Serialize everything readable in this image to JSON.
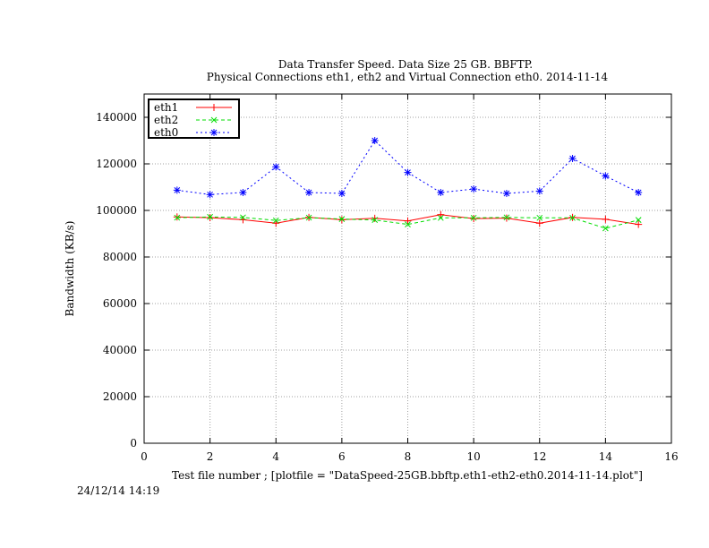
{
  "chart_data": {
    "type": "line",
    "title": "Data Transfer Speed. Data Size 25 GB. BBFTP.",
    "subtitle": "Physical Connections eth1, eth2 and Virtual Connection eth0. 2014-11-14",
    "xlabel": "Test file number ; [plotfile = \"DataSpeed-25GB.bbftp.eth1-eth2-eth0.2014-11-14.plot\"]",
    "ylabel": "Bandwidth (KB/s)",
    "xlim": [
      0,
      16
    ],
    "ylim": [
      0,
      150000
    ],
    "x_ticks": [
      0,
      2,
      4,
      6,
      8,
      10,
      12,
      14,
      16
    ],
    "y_ticks": [
      0,
      20000,
      40000,
      60000,
      80000,
      100000,
      120000,
      140000
    ],
    "grid": true,
    "legend_position": "top-left",
    "x": [
      1,
      2,
      3,
      4,
      5,
      6,
      7,
      8,
      9,
      10,
      11,
      12,
      13,
      14,
      15
    ],
    "series": [
      {
        "name": "eth1",
        "color": "#ff0000",
        "marker": "plus",
        "dash": "solid",
        "values": [
          97200,
          96900,
          96000,
          94500,
          97000,
          96000,
          96600,
          95500,
          98200,
          96500,
          96700,
          94500,
          97000,
          96200,
          94000
        ]
      },
      {
        "name": "eth2",
        "color": "#00dd00",
        "marker": "cross",
        "dash": "dashed",
        "values": [
          96900,
          97200,
          97000,
          95700,
          96900,
          96300,
          95900,
          94000,
          96800,
          96800,
          97000,
          96800,
          96800,
          92300,
          95900
        ]
      },
      {
        "name": "eth0",
        "color": "#0000ff",
        "marker": "star",
        "dash": "dotted",
        "values": [
          108700,
          106800,
          107700,
          118700,
          107700,
          107300,
          130000,
          116300,
          107700,
          109200,
          107300,
          108300,
          122300,
          114800,
          107700
        ]
      }
    ]
  },
  "timestamp": "24/12/14 14:19"
}
